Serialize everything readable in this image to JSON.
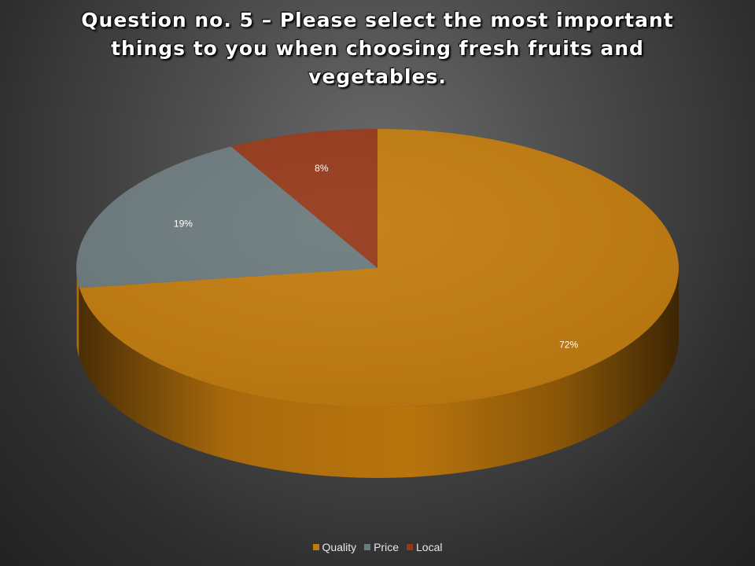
{
  "chart_data": {
    "type": "pie",
    "title": "Question no. 5 – Please select the most important things to you when choosing fresh fruits and vegetables.",
    "categories": [
      "Quality",
      "Price",
      "Local"
    ],
    "values": [
      72,
      19,
      8
    ],
    "labels": [
      "72%",
      "19%",
      "8%"
    ],
    "colors": [
      "#c27c0e",
      "#6c7b7e",
      "#96391a"
    ],
    "legend_position": "bottom",
    "style": "3d"
  }
}
